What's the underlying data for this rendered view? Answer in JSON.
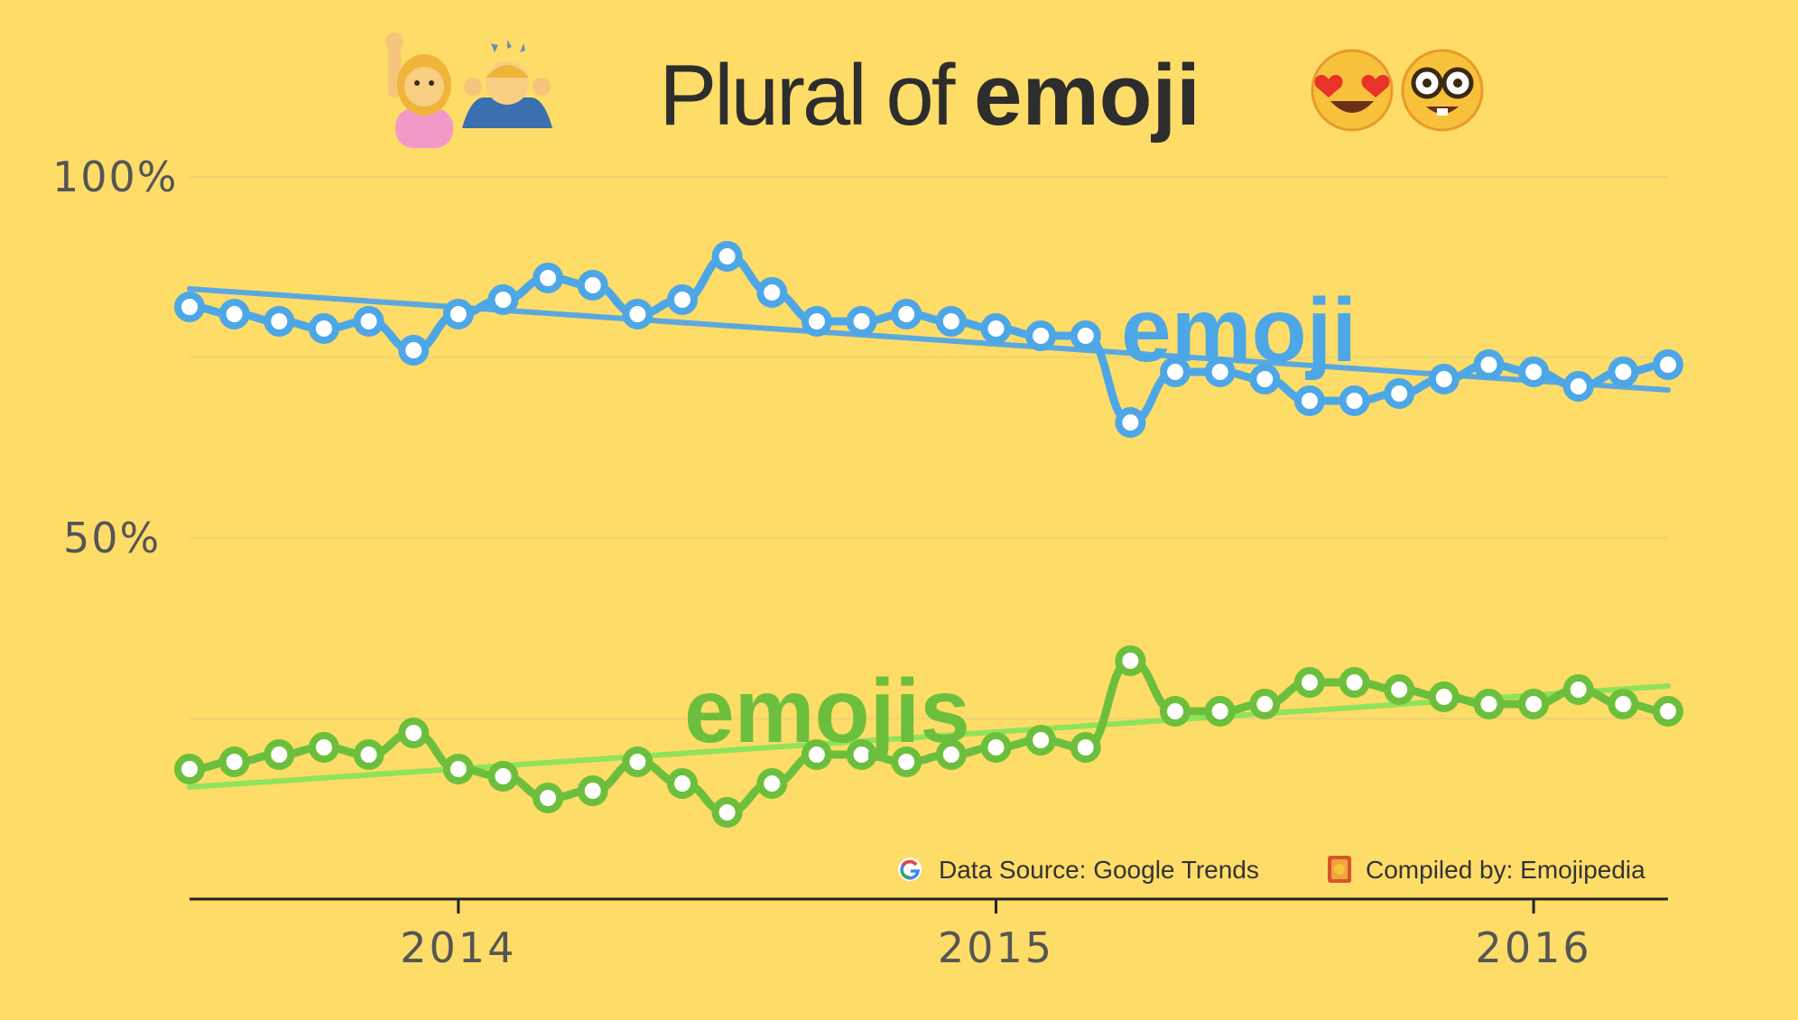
{
  "title": {
    "light": "Plural of ",
    "bold": "emoji"
  },
  "icons": [
    "person-raising-hand-icon",
    "person-gesturing-ok-icon",
    "heart-eyes-face-icon",
    "nerd-face-icon"
  ],
  "footer": {
    "source": "Data Source: Google Trends",
    "compiled": "Compiled by: Emojipedia"
  },
  "colors": {
    "background": "#fddc68",
    "emoji_line": "#4da7e6",
    "emoji_trend": "#5aa8e0",
    "emojis_line": "#6cbf3c",
    "emojis_trend": "#8fe35a",
    "grid": "#e8d07a",
    "axis": "#222222"
  },
  "chart_data": {
    "type": "line",
    "title": "Plural of emoji",
    "y_ticks": [
      "100%",
      "50%"
    ],
    "x_ticks": [
      {
        "label": "2014",
        "index": 6
      },
      {
        "label": "2015",
        "index": 18
      },
      {
        "label": "2016",
        "index": 30
      }
    ],
    "ylim": [
      0,
      100
    ],
    "grid": true,
    "x": [
      "2013-07",
      "2013-08",
      "2013-09",
      "2013-10",
      "2013-11",
      "2013-12",
      "2014-01",
      "2014-02",
      "2014-03",
      "2014-04",
      "2014-05",
      "2014-06",
      "2014-07",
      "2014-08",
      "2014-09",
      "2014-10",
      "2014-11",
      "2014-12",
      "2015-01",
      "2015-02",
      "2015-03",
      "2015-04",
      "2015-05",
      "2015-06",
      "2015-07",
      "2015-08",
      "2015-09",
      "2015-10",
      "2015-11",
      "2015-12",
      "2016-01",
      "2016-02",
      "2016-03",
      "2016-04"
    ],
    "series": [
      {
        "name": "emoji",
        "values": [
          82,
          81,
          80,
          79,
          80,
          76,
          81,
          83,
          86,
          85,
          81,
          83,
          89,
          84,
          80,
          80,
          81,
          80,
          79,
          78,
          78,
          66,
          73,
          73,
          72,
          69,
          69,
          70,
          72,
          74,
          73,
          71,
          73,
          74
        ],
        "trend": [
          84.5,
          70.5
        ]
      },
      {
        "name": "emojis",
        "values": [
          18,
          19,
          20,
          21,
          20,
          23,
          18,
          17,
          14,
          15,
          19,
          16,
          12,
          16,
          20,
          20,
          19,
          20,
          21,
          22,
          21,
          33,
          26,
          26,
          27,
          30,
          30,
          29,
          28,
          27,
          27,
          29,
          27,
          26
        ],
        "trend": [
          15.5,
          29.5
        ]
      }
    ]
  }
}
